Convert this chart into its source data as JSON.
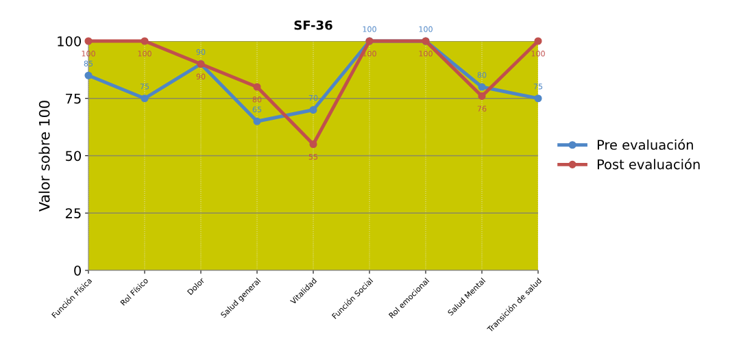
{
  "chart_data": {
    "type": "line",
    "title": "SF-36",
    "ylabel": "Valor sobre 100",
    "categories": [
      "Función Física",
      "Rol Físico",
      "Dolor",
      "Salud general",
      "Vitalidad",
      "Función Social",
      "Rol emocional",
      "Salud Mental",
      "Transición de salud"
    ],
    "series": [
      {
        "name": "Pre evaluación",
        "color": "#4f86c6",
        "values": [
          85,
          75,
          90,
          65,
          70,
          100,
          100,
          80,
          75
        ]
      },
      {
        "name": "Post evaluación",
        "color": "#c0504d",
        "values": [
          100,
          100,
          90,
          80,
          55,
          100,
          100,
          76,
          100
        ]
      }
    ],
    "ylim": [
      0,
      100
    ],
    "yticks": [
      0,
      25,
      50,
      75,
      100
    ],
    "grid": true,
    "legend": "right",
    "marker": "circle",
    "line_style": "solid",
    "data_labels": true
  }
}
